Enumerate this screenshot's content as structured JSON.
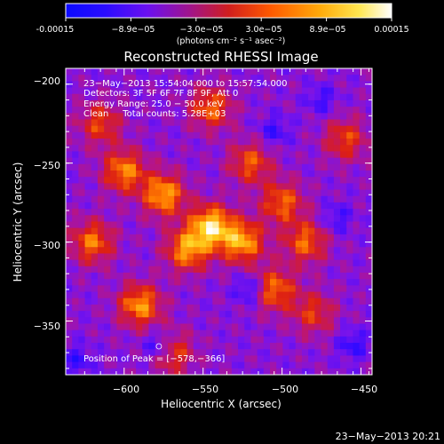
{
  "colorbar": {
    "tick_labels": [
      "-0.00015",
      "−8.9e−05",
      "−3.0e−05",
      "3.0e−05",
      "8.9e−05",
      "0.00015"
    ],
    "unit_label": "(photons cm⁻² s⁻¹ asec⁻²)",
    "range": [
      -0.00015,
      0.00015
    ]
  },
  "annotations": {
    "time_range": "23−May−2013 15:54:04.000 to 15:57:54.000",
    "detectors": "Detectors: 3F 5F 6F 7F 8F 9F, Att 0",
    "energy_range": "Energy Range: 25.0 − 50.0 keV",
    "method_counts": "Clean     Total counts: 5.28E+03",
    "peak_position": "Position of Peak = [−578,−366]"
  },
  "footer": {
    "timestamp": "23−May−2013 20:21"
  },
  "chart_data": {
    "type": "heatmap",
    "title": "Reconstructed RHESSI Image",
    "xlabel": "Heliocentric X (arcsec)",
    "ylabel": "Heliocentric Y (arcsec)",
    "xlim": [
      -637,
      -443
    ],
    "ylim": [
      -384,
      -190
    ],
    "x_ticks": [
      -600,
      -550,
      -500,
      -450
    ],
    "y_ticks": [
      -200,
      -250,
      -300,
      -350
    ],
    "x_tick_labels": [
      "−600",
      "−550",
      "−500",
      "−450"
    ],
    "y_tick_labels": [
      "−200",
      "−250",
      "−300",
      "−350"
    ],
    "peak_position": [
      -578,
      -366
    ],
    "colormap": [
      "#0a0aff",
      "#3c0aff",
      "#7a14ea",
      "#b4148c",
      "#dc1e14",
      "#ff7800",
      "#ffd21e",
      "#ffffff"
    ],
    "bright_regions": [
      {
        "x": -545,
        "y": -290,
        "amp": 1.0
      },
      {
        "x": -525,
        "y": -300,
        "amp": 0.85
      },
      {
        "x": -575,
        "y": -270,
        "amp": 0.85
      },
      {
        "x": -560,
        "y": -305,
        "amp": 0.8
      },
      {
        "x": -600,
        "y": -255,
        "amp": 0.75
      },
      {
        "x": -590,
        "y": -340,
        "amp": 0.8
      },
      {
        "x": -620,
        "y": -300,
        "amp": 0.7
      },
      {
        "x": -505,
        "y": -330,
        "amp": 0.7
      },
      {
        "x": -500,
        "y": -275,
        "amp": 0.65
      },
      {
        "x": -545,
        "y": -215,
        "amp": 0.65
      },
      {
        "x": -485,
        "y": -300,
        "amp": 0.65
      },
      {
        "x": -615,
        "y": -225,
        "amp": 0.55
      },
      {
        "x": -460,
        "y": -235,
        "amp": 0.55
      },
      {
        "x": -480,
        "y": -345,
        "amp": 0.5
      },
      {
        "x": -570,
        "y": -370,
        "amp": 0.6
      },
      {
        "x": -520,
        "y": -250,
        "amp": 0.6
      }
    ],
    "dark_regions": [
      {
        "x": -578,
        "y": -366,
        "amp": 0.8
      },
      {
        "x": -520,
        "y": -330,
        "amp": 0.65
      },
      {
        "x": -455,
        "y": -365,
        "amp": 0.55
      },
      {
        "x": -505,
        "y": -230,
        "amp": 0.5
      },
      {
        "x": -465,
        "y": -285,
        "amp": 0.45
      },
      {
        "x": -630,
        "y": -375,
        "amp": 0.5
      },
      {
        "x": -475,
        "y": -210,
        "amp": 0.45
      }
    ]
  }
}
